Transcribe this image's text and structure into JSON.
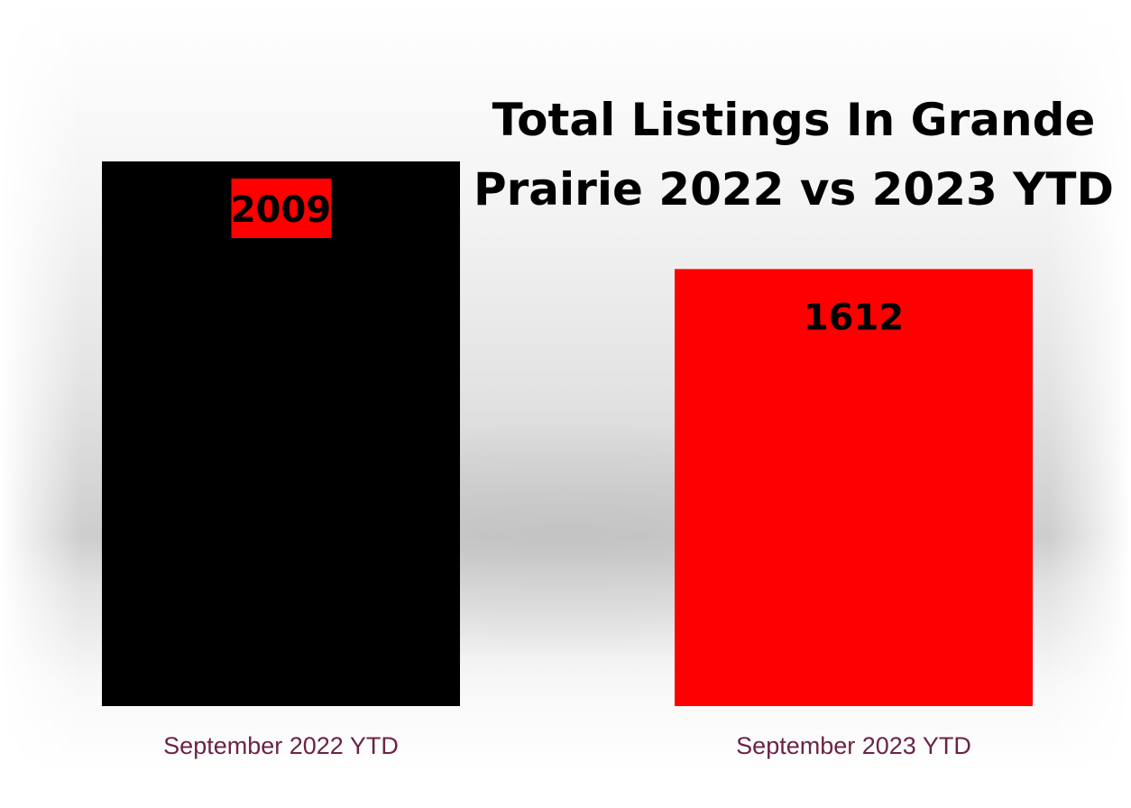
{
  "chart_data": {
    "type": "bar",
    "title": [
      "Total Listings In Grande",
      "Prairie 2022 vs 2023 YTD"
    ],
    "categories": [
      "September 2022 YTD",
      "September 2023 YTD"
    ],
    "values": [
      2009,
      1612
    ],
    "bar_colors": [
      "#000000",
      "#ff0000"
    ],
    "label_colors": [
      "#000000",
      "#000000"
    ],
    "label_backgrounds": [
      "#ff0000",
      null
    ],
    "tick_label_color": "#6b2346",
    "ylim": [
      0,
      2009
    ],
    "grid": false,
    "legend": "none"
  }
}
